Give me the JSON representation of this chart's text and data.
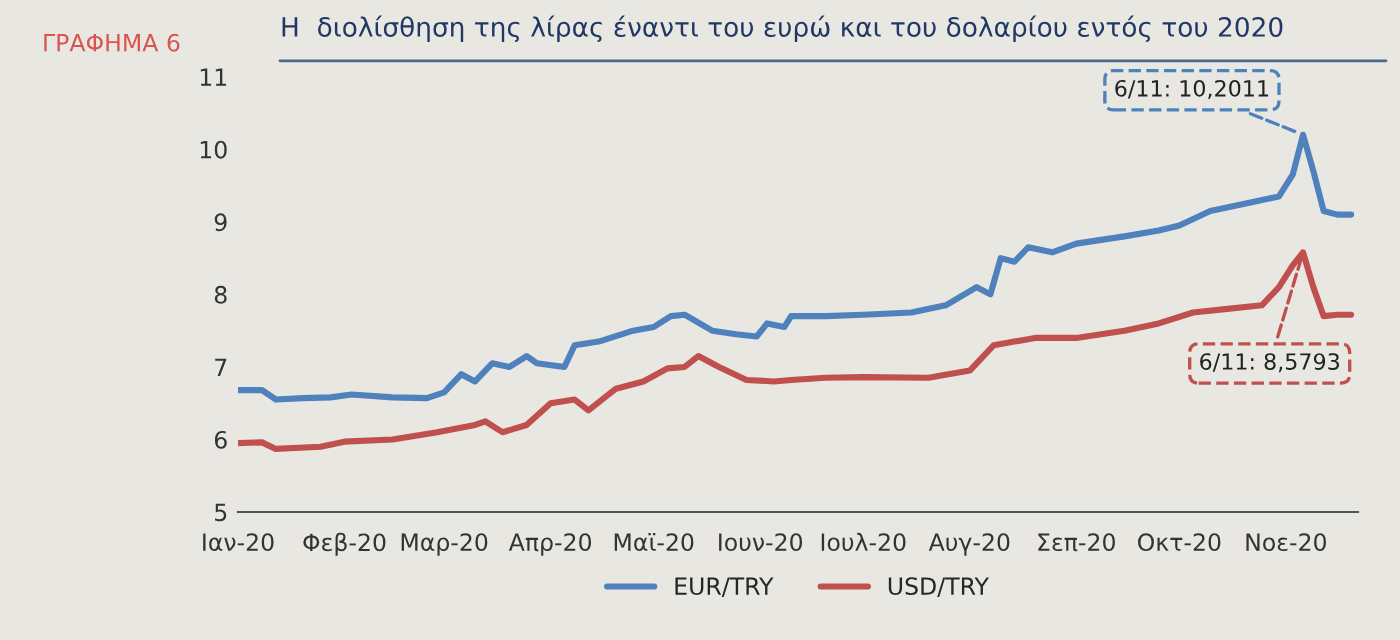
{
  "chart_data": {
    "type": "line",
    "title": "Η  διολίσθηση της λίρας έναντι του ευρώ και του δολαρίου εντός του 2020",
    "annotations": [
      "ΓΡΑΦΗΜΑ 6",
      {
        "text": "6/11: 10,2011",
        "x": "2020-11-06",
        "y": 10.2011
      },
      {
        "text": "6/11: 8,5793",
        "x": "2020-11-06",
        "y": 8.5793
      }
    ],
    "x": [
      "2020-01-01",
      "2020-01-08",
      "2020-01-12",
      "2020-01-20",
      "2020-01-28",
      "2020-02-03",
      "2020-02-15",
      "2020-02-25",
      "2020-03-01",
      "2020-03-06",
      "2020-03-10",
      "2020-03-15",
      "2020-03-20",
      "2020-03-25",
      "2020-03-28",
      "2020-04-05",
      "2020-04-08",
      "2020-04-15",
      "2020-04-25",
      "2020-05-01",
      "2020-05-06",
      "2020-05-10",
      "2020-05-18",
      "2020-05-25",
      "2020-05-31",
      "2020-06-03",
      "2020-06-08",
      "2020-06-10",
      "2020-06-20",
      "2020-07-01",
      "2020-07-15",
      "2020-07-25",
      "2020-08-03",
      "2020-08-07",
      "2020-08-10",
      "2020-08-14",
      "2020-08-18",
      "2020-08-25",
      "2020-09-01",
      "2020-09-15",
      "2020-09-25",
      "2020-10-01",
      "2020-10-10",
      "2020-10-20",
      "2020-10-30",
      "2020-11-03",
      "2020-11-06",
      "2020-11-09",
      "2020-11-12",
      "2020-11-16",
      "2020-11-20"
    ],
    "series": [
      {
        "name": "EUR/TRY",
        "color": "#4f81bd",
        "values": [
          6.68,
          6.68,
          6.55,
          6.57,
          6.58,
          6.62,
          6.58,
          6.57,
          6.65,
          6.9,
          6.8,
          7.05,
          7.0,
          7.15,
          7.05,
          7.0,
          7.3,
          7.35,
          7.5,
          7.55,
          7.7,
          7.72,
          7.5,
          7.45,
          7.42,
          7.6,
          7.55,
          7.7,
          7.7,
          7.72,
          7.75,
          7.85,
          8.1,
          8.0,
          8.5,
          8.45,
          8.65,
          8.58,
          8.7,
          8.8,
          8.88,
          8.95,
          9.15,
          9.25,
          9.35,
          9.65,
          10.2011,
          9.7,
          9.15,
          9.1,
          9.1
        ]
      },
      {
        "name": "USD/TRY",
        "color": "#c0504d",
        "x": [
          "2020-01-01",
          "2020-01-08",
          "2020-01-12",
          "2020-01-25",
          "2020-02-01",
          "2020-02-15",
          "2020-02-28",
          "2020-03-10",
          "2020-03-13",
          "2020-03-18",
          "2020-03-25",
          "2020-04-01",
          "2020-04-08",
          "2020-04-12",
          "2020-04-20",
          "2020-04-28",
          "2020-05-05",
          "2020-05-10",
          "2020-05-14",
          "2020-05-20",
          "2020-05-28",
          "2020-06-05",
          "2020-06-10",
          "2020-06-20",
          "2020-07-01",
          "2020-07-20",
          "2020-08-01",
          "2020-08-08",
          "2020-08-14",
          "2020-08-20",
          "2020-09-01",
          "2020-09-15",
          "2020-09-25",
          "2020-10-05",
          "2020-10-15",
          "2020-10-25",
          "2020-10-30",
          "2020-11-03",
          "2020-11-06",
          "2020-11-09",
          "2020-11-12",
          "2020-11-16",
          "2020-11-20"
        ],
        "values": [
          5.95,
          5.96,
          5.87,
          5.9,
          5.97,
          6.0,
          6.1,
          6.2,
          6.25,
          6.1,
          6.2,
          6.5,
          6.55,
          6.4,
          6.7,
          6.8,
          6.98,
          7.0,
          7.15,
          7.0,
          6.82,
          6.8,
          6.82,
          6.85,
          6.86,
          6.85,
          6.95,
          7.3,
          7.35,
          7.4,
          7.4,
          7.5,
          7.6,
          7.75,
          7.8,
          7.85,
          8.1,
          8.4,
          8.5793,
          8.1,
          7.7,
          7.72,
          7.72
        ]
      }
    ],
    "xlim": [
      "2020-01-01",
      "2020-11-22"
    ],
    "xticks": [
      {
        "value": "2020-01-01",
        "label": "Ιαν-20"
      },
      {
        "value": "2020-02-01",
        "label": "Φεβ-20"
      },
      {
        "value": "2020-03-01",
        "label": "Μαρ-20"
      },
      {
        "value": "2020-04-01",
        "label": "Απρ-20"
      },
      {
        "value": "2020-05-01",
        "label": "Μαϊ-20"
      },
      {
        "value": "2020-06-01",
        "label": "Ιουν-20"
      },
      {
        "value": "2020-07-01",
        "label": "Ιουλ-20"
      },
      {
        "value": "2020-08-01",
        "label": "Αυγ-20"
      },
      {
        "value": "2020-09-01",
        "label": "Σεπ-20"
      },
      {
        "value": "2020-10-01",
        "label": "Οκτ-20"
      },
      {
        "value": "2020-11-01",
        "label": "Νοε-20"
      }
    ],
    "ylim": [
      5,
      11
    ],
    "yticks": [
      5,
      6,
      7,
      8,
      9,
      10,
      11
    ],
    "grid": false,
    "legend": "bottom",
    "line_style": "solid",
    "marker": "none"
  }
}
